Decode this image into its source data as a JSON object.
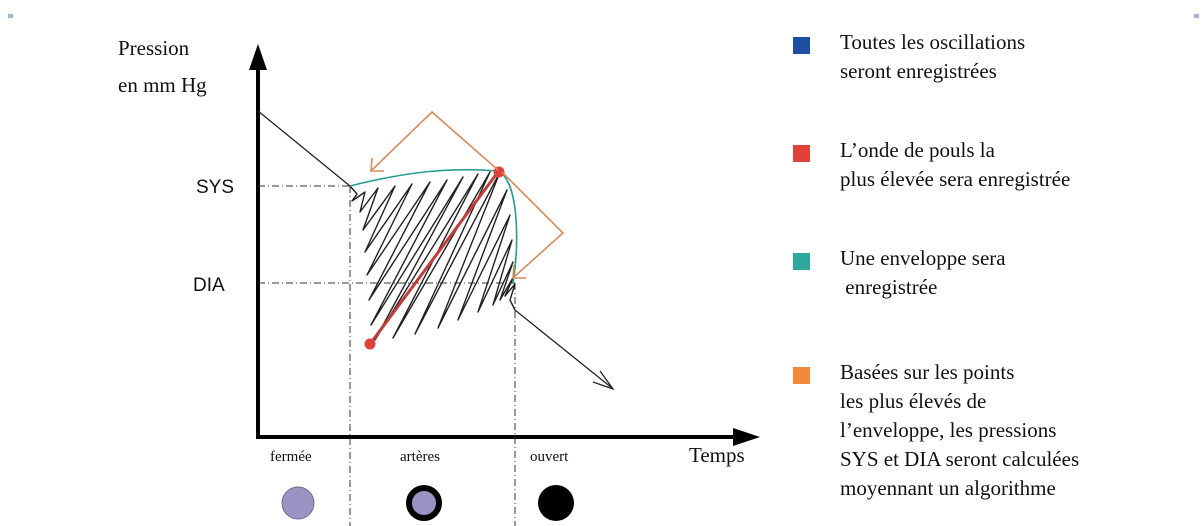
{
  "diagram": {
    "y_axis_label": [
      "Pression",
      "en mm Hg"
    ],
    "x_axis_label": "Temps",
    "sys_label": "SYS",
    "dia_label": "DIA",
    "phase_labels": [
      "fermée",
      "artères",
      "ouvert"
    ]
  },
  "legend": [
    {
      "color": "#1f4fa0",
      "lines": [
        "Toutes les oscillations",
        "seront enregistrées"
      ]
    },
    {
      "color": "#e0413a",
      "lines": [
        "L’onde de pouls la",
        "plus élevée sera enregistrée"
      ]
    },
    {
      "color": "#2fa79a",
      "lines": [
        "Une enveloppe sera",
        " enregistrée"
      ]
    },
    {
      "color": "#f08a3a",
      "lines": [
        "Basées sur les points",
        "les plus élevés de",
        "l’enveloppe, les pressions",
        "SYS et DIA seront calculées",
        "moyennant un algorithme"
      ]
    }
  ],
  "colors": {
    "axis": "#000000",
    "oscillation": "#222222",
    "pulse_wave": "#c43b3b",
    "envelope": "#2a9d93",
    "calculation": "#d98a5a",
    "circle_fill": "#9b93c4"
  }
}
